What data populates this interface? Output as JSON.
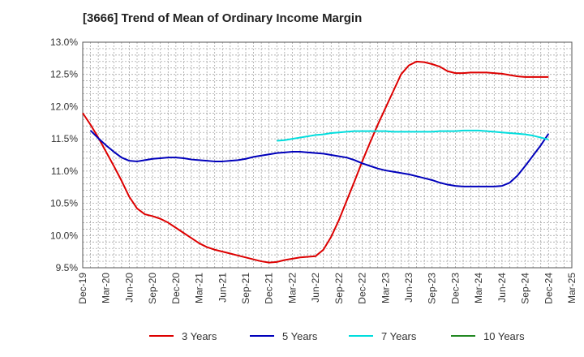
{
  "chart_data": {
    "type": "line",
    "title": "[3666]  Trend of Mean of Ordinary Income Margin",
    "xlabel": "",
    "ylabel": "",
    "ylim": [
      9.5,
      13.0
    ],
    "yticks": [
      9.5,
      10.0,
      10.5,
      11.0,
      11.5,
      12.0,
      12.5,
      13.0
    ],
    "ytick_labels": [
      "9.5%",
      "10.0%",
      "10.5%",
      "11.0%",
      "11.5%",
      "12.0%",
      "12.5%",
      "13.0%"
    ],
    "x_range": [
      "Dec-19",
      "Mar-25"
    ],
    "x_ticks": [
      "Dec-19",
      "Mar-20",
      "Jun-20",
      "Sep-20",
      "Dec-20",
      "Mar-21",
      "Jun-21",
      "Sep-21",
      "Dec-21",
      "Mar-22",
      "Jun-22",
      "Sep-22",
      "Dec-22",
      "Mar-23",
      "Jun-23",
      "Sep-23",
      "Dec-23",
      "Mar-24",
      "Jun-24",
      "Sep-24",
      "Dec-24",
      "Mar-25"
    ],
    "grid": true,
    "legend_position": "bottom",
    "series": [
      {
        "name": "3 Years",
        "color": "#dd0000",
        "points": [
          [
            "Dec-19",
            11.9
          ],
          [
            "Jan-20",
            11.72
          ],
          [
            "Feb-20",
            11.52
          ],
          [
            "Mar-20",
            11.3
          ],
          [
            "Apr-20",
            11.08
          ],
          [
            "May-20",
            10.85
          ],
          [
            "Jun-20",
            10.6
          ],
          [
            "Jul-20",
            10.42
          ],
          [
            "Aug-20",
            10.33
          ],
          [
            "Sep-20",
            10.3
          ],
          [
            "Oct-20",
            10.26
          ],
          [
            "Nov-20",
            10.2
          ],
          [
            "Dec-20",
            10.12
          ],
          [
            "Jan-21",
            10.04
          ],
          [
            "Feb-21",
            9.96
          ],
          [
            "Mar-21",
            9.88
          ],
          [
            "Apr-21",
            9.82
          ],
          [
            "May-21",
            9.78
          ],
          [
            "Jun-21",
            9.75
          ],
          [
            "Jul-21",
            9.72
          ],
          [
            "Aug-21",
            9.69
          ],
          [
            "Sep-21",
            9.66
          ],
          [
            "Oct-21",
            9.63
          ],
          [
            "Nov-21",
            9.6
          ],
          [
            "Dec-21",
            9.58
          ],
          [
            "Jan-22",
            9.59
          ],
          [
            "Feb-22",
            9.62
          ],
          [
            "Mar-22",
            9.64
          ],
          [
            "Apr-22",
            9.66
          ],
          [
            "May-22",
            9.67
          ],
          [
            "Jun-22",
            9.68
          ],
          [
            "Jul-22",
            9.78
          ],
          [
            "Aug-22",
            9.98
          ],
          [
            "Sep-22",
            10.24
          ],
          [
            "Oct-22",
            10.54
          ],
          [
            "Nov-22",
            10.84
          ],
          [
            "Dec-22",
            11.15
          ],
          [
            "Jan-23",
            11.44
          ],
          [
            "Feb-23",
            11.72
          ],
          [
            "Mar-23",
            11.98
          ],
          [
            "Apr-23",
            12.24
          ],
          [
            "May-23",
            12.5
          ],
          [
            "Jun-23",
            12.64
          ],
          [
            "Jul-23",
            12.7
          ],
          [
            "Aug-23",
            12.69
          ],
          [
            "Sep-23",
            12.66
          ],
          [
            "Oct-23",
            12.62
          ],
          [
            "Nov-23",
            12.55
          ],
          [
            "Dec-23",
            12.52
          ],
          [
            "Jan-24",
            12.52
          ],
          [
            "Feb-24",
            12.53
          ],
          [
            "Mar-24",
            12.53
          ],
          [
            "Apr-24",
            12.53
          ],
          [
            "May-24",
            12.52
          ],
          [
            "Jun-24",
            12.51
          ],
          [
            "Jul-24",
            12.49
          ],
          [
            "Aug-24",
            12.47
          ],
          [
            "Sep-24",
            12.46
          ],
          [
            "Oct-24",
            12.46
          ],
          [
            "Nov-24",
            12.46
          ],
          [
            "Dec-24",
            12.46
          ]
        ]
      },
      {
        "name": "5 Years",
        "color": "#0000bb",
        "points": [
          [
            "Jan-20",
            11.63
          ],
          [
            "Feb-20",
            11.51
          ],
          [
            "Mar-20",
            11.4
          ],
          [
            "Apr-20",
            11.3
          ],
          [
            "May-20",
            11.21
          ],
          [
            "Jun-20",
            11.16
          ],
          [
            "Jul-20",
            11.15
          ],
          [
            "Aug-20",
            11.17
          ],
          [
            "Sep-20",
            11.19
          ],
          [
            "Oct-20",
            11.2
          ],
          [
            "Nov-20",
            11.21
          ],
          [
            "Dec-20",
            11.21
          ],
          [
            "Jan-21",
            11.2
          ],
          [
            "Feb-21",
            11.18
          ],
          [
            "Mar-21",
            11.17
          ],
          [
            "Apr-21",
            11.16
          ],
          [
            "May-21",
            11.15
          ],
          [
            "Jun-21",
            11.15
          ],
          [
            "Jul-21",
            11.16
          ],
          [
            "Aug-21",
            11.17
          ],
          [
            "Sep-21",
            11.19
          ],
          [
            "Oct-21",
            11.22
          ],
          [
            "Nov-21",
            11.24
          ],
          [
            "Dec-21",
            11.26
          ],
          [
            "Jan-22",
            11.28
          ],
          [
            "Feb-22",
            11.29
          ],
          [
            "Mar-22",
            11.3
          ],
          [
            "Apr-22",
            11.3
          ],
          [
            "May-22",
            11.29
          ],
          [
            "Jun-22",
            11.28
          ],
          [
            "Jul-22",
            11.27
          ],
          [
            "Aug-22",
            11.25
          ],
          [
            "Sep-22",
            11.23
          ],
          [
            "Oct-22",
            11.21
          ],
          [
            "Nov-22",
            11.17
          ],
          [
            "Dec-22",
            11.12
          ],
          [
            "Jan-23",
            11.08
          ],
          [
            "Feb-23",
            11.04
          ],
          [
            "Mar-23",
            11.01
          ],
          [
            "Apr-23",
            10.99
          ],
          [
            "May-23",
            10.97
          ],
          [
            "Jun-23",
            10.95
          ],
          [
            "Jul-23",
            10.92
          ],
          [
            "Aug-23",
            10.89
          ],
          [
            "Sep-23",
            10.86
          ],
          [
            "Oct-23",
            10.82
          ],
          [
            "Nov-23",
            10.79
          ],
          [
            "Dec-23",
            10.77
          ],
          [
            "Jan-24",
            10.76
          ],
          [
            "Feb-24",
            10.76
          ],
          [
            "Mar-24",
            10.76
          ],
          [
            "Apr-24",
            10.76
          ],
          [
            "May-24",
            10.76
          ],
          [
            "Jun-24",
            10.77
          ],
          [
            "Jul-24",
            10.82
          ],
          [
            "Aug-24",
            10.93
          ],
          [
            "Sep-24",
            11.08
          ],
          [
            "Oct-24",
            11.24
          ],
          [
            "Nov-24",
            11.4
          ],
          [
            "Dec-24",
            11.58
          ]
        ]
      },
      {
        "name": "7 Years",
        "color": "#00dddd",
        "points": [
          [
            "Jan-22",
            11.47
          ],
          [
            "Feb-22",
            11.48
          ],
          [
            "Mar-22",
            11.5
          ],
          [
            "Apr-22",
            11.52
          ],
          [
            "May-22",
            11.54
          ],
          [
            "Jun-22",
            11.56
          ],
          [
            "Jul-22",
            11.57
          ],
          [
            "Aug-22",
            11.59
          ],
          [
            "Sep-22",
            11.6
          ],
          [
            "Oct-22",
            11.61
          ],
          [
            "Nov-22",
            11.62
          ],
          [
            "Dec-22",
            11.62
          ],
          [
            "Jan-23",
            11.62
          ],
          [
            "Feb-23",
            11.62
          ],
          [
            "Mar-23",
            11.62
          ],
          [
            "Apr-23",
            11.61
          ],
          [
            "May-23",
            11.61
          ],
          [
            "Jun-23",
            11.61
          ],
          [
            "Jul-23",
            11.61
          ],
          [
            "Aug-23",
            11.61
          ],
          [
            "Sep-23",
            11.61
          ],
          [
            "Oct-23",
            11.62
          ],
          [
            "Nov-23",
            11.62
          ],
          [
            "Dec-23",
            11.62
          ],
          [
            "Jan-24",
            11.63
          ],
          [
            "Feb-24",
            11.63
          ],
          [
            "Mar-24",
            11.63
          ],
          [
            "Apr-24",
            11.62
          ],
          [
            "May-24",
            11.61
          ],
          [
            "Jun-24",
            11.6
          ],
          [
            "Jul-24",
            11.59
          ],
          [
            "Aug-24",
            11.58
          ],
          [
            "Sep-24",
            11.57
          ],
          [
            "Oct-24",
            11.55
          ],
          [
            "Nov-24",
            11.52
          ],
          [
            "Dec-24",
            11.49
          ]
        ]
      },
      {
        "name": "10 Years",
        "color": "#228822",
        "points": []
      }
    ]
  }
}
